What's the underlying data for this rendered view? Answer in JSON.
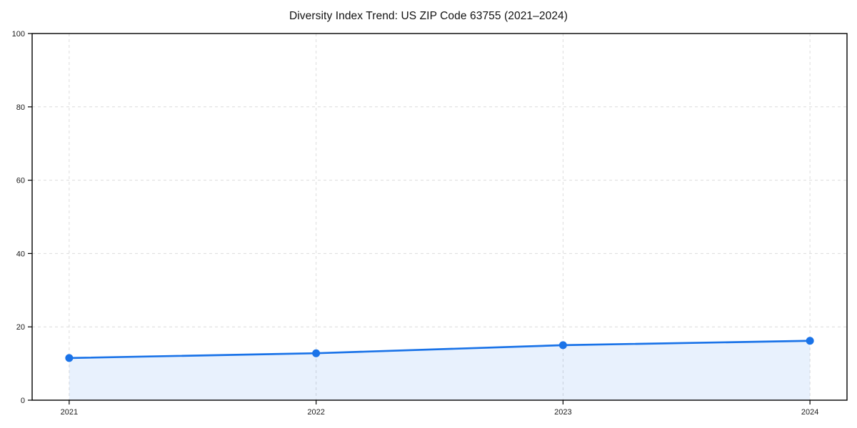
{
  "chart_data": {
    "type": "area",
    "title": "Diversity Index Trend: US ZIP Code 63755 (2021–2024)",
    "categories": [
      "2021",
      "2022",
      "2023",
      "2024"
    ],
    "series": [
      {
        "name": "Diversity Index",
        "values": [
          11.5,
          12.8,
          15.0,
          16.2
        ]
      }
    ],
    "xlabel": "",
    "ylabel": "",
    "ylim": [
      0,
      100
    ],
    "yticks": [
      0,
      20,
      40,
      60,
      80,
      100
    ],
    "grid": "dashed, both axes",
    "legend": "none",
    "colors": {
      "line": "#1a73e8",
      "marker": "#1a73e8",
      "fill": "#1a73e8",
      "grid": "#dcdcdc",
      "axis": "#000000",
      "text": "#1a1a1a"
    }
  }
}
